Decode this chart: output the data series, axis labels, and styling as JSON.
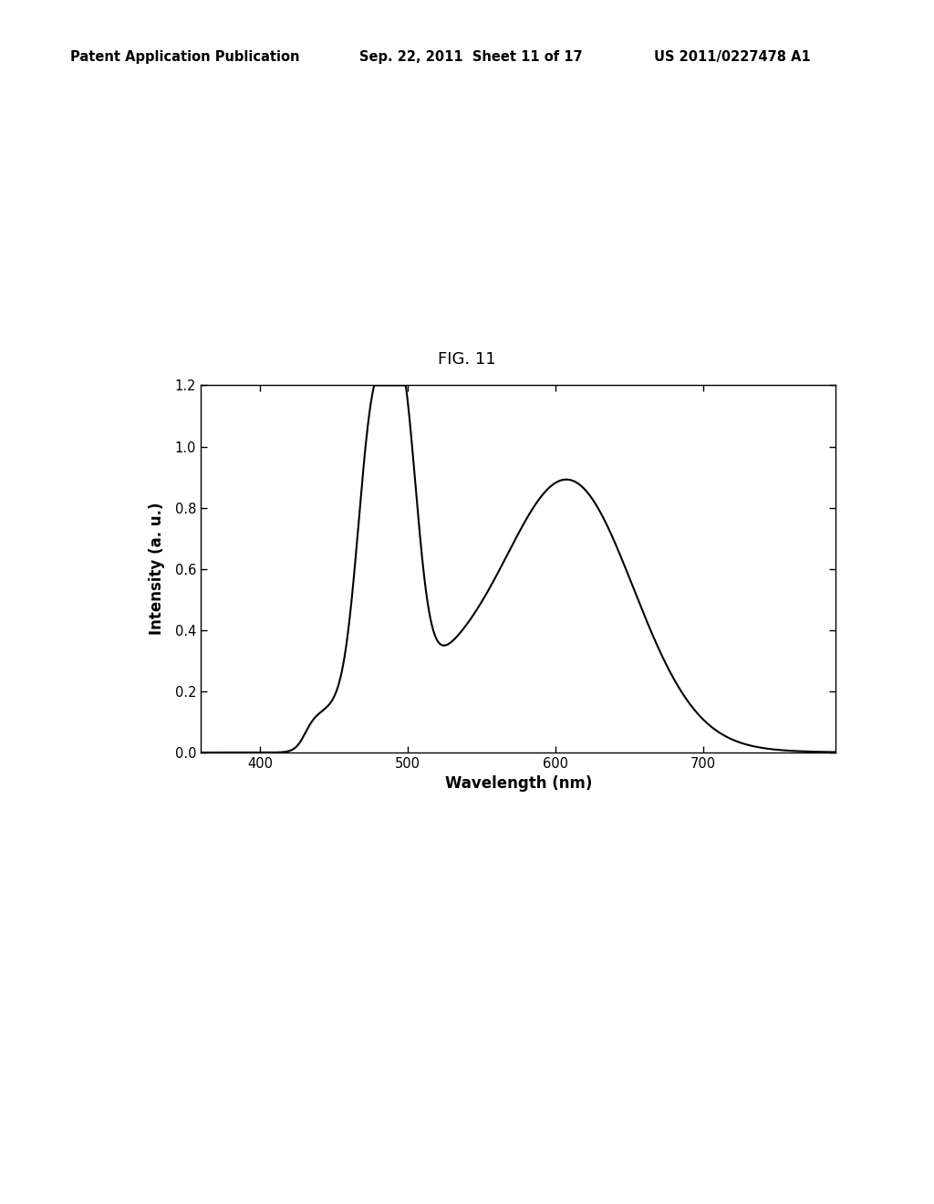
{
  "title": "FIG. 11",
  "xlabel": "Wavelength (nm)",
  "ylabel": "Intensity (a. u.)",
  "xlim": [
    360,
    790
  ],
  "ylim": [
    0.0,
    1.2
  ],
  "xticks": [
    400,
    500,
    600,
    700
  ],
  "yticks": [
    0.0,
    0.2,
    0.4,
    0.6,
    0.8,
    1.0,
    1.2
  ],
  "line_color": "#000000",
  "line_width": 1.5,
  "background_color": "#ffffff",
  "header_left": "Patent Application Publication",
  "header_center": "Sep. 22, 2011  Sheet 11 of 17",
  "header_right": "US 2011/0227478 A1",
  "header_fontsize": 10.5
}
